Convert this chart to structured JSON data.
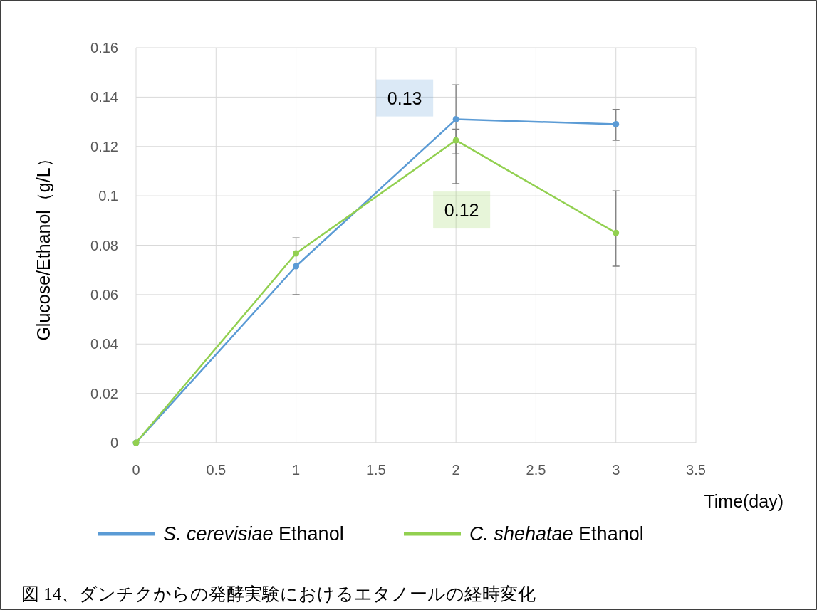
{
  "chart_data": {
    "type": "line",
    "xlabel": "Time(day)",
    "ylabel": "Glucose/Ethanol（g/L）",
    "x": [
      0,
      1,
      2,
      3
    ],
    "xlim": [
      0,
      3.5
    ],
    "xticks": [
      0,
      0.5,
      1,
      1.5,
      2,
      2.5,
      3,
      3.5
    ],
    "ylim": [
      0,
      0.16
    ],
    "yticks": [
      0,
      0.02,
      0.04,
      0.06,
      0.08,
      0.1,
      0.12,
      0.14,
      0.16
    ],
    "grid": true,
    "legend": "bottom",
    "marker": "circle",
    "line_style": "solid",
    "series": [
      {
        "name": "S. cerevisiae Ethanol",
        "color": "#5b9bd5",
        "values": [
          0,
          0.0715,
          0.131,
          0.129
        ],
        "errors": [
          null,
          [
            0.06,
            0.083
          ],
          [
            0.117,
            0.145
          ],
          [
            0.1225,
            0.135
          ]
        ],
        "value_labels": [
          null,
          null,
          "0.13",
          null
        ]
      },
      {
        "name": "C. shehatae Ethanol",
        "color": "#92d050",
        "values": [
          0,
          0.0767,
          0.1225,
          0.085
        ],
        "errors": [
          null,
          null,
          [
            0.105,
            0.127
          ],
          [
            0.0715,
            0.102
          ]
        ],
        "value_labels": [
          null,
          null,
          "0.12",
          null
        ]
      }
    ],
    "annotations": [
      "図 14、ダンチクからの発酵実験におけるエタノールの経時変化"
    ]
  }
}
